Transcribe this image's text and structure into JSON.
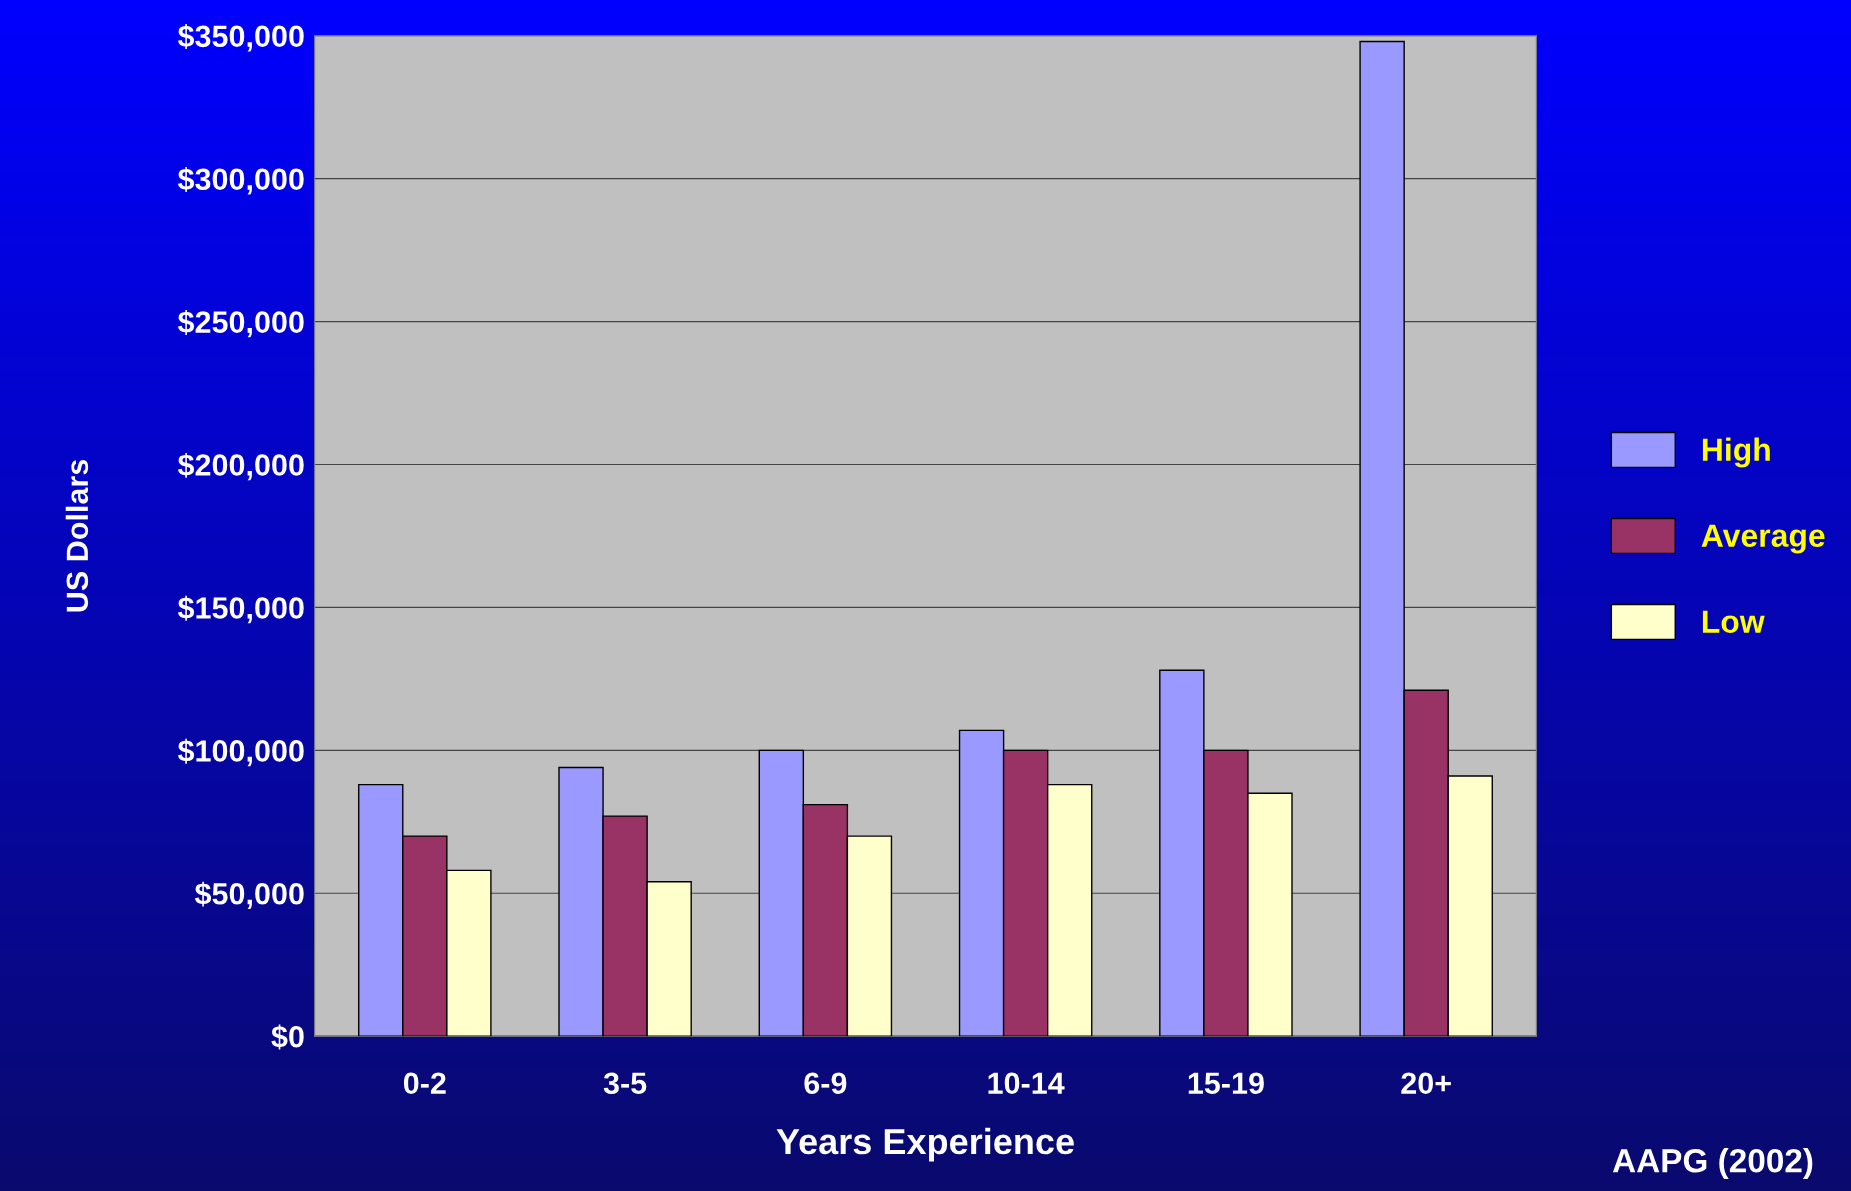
{
  "chart_data": {
    "type": "bar",
    "xlabel": "Years Experience",
    "ylabel": "US Dollars",
    "categories": [
      "0-2",
      "3-5",
      "6-9",
      "10-14",
      "15-19",
      "20+"
    ],
    "series": [
      {
        "name": "High",
        "color": "#9999ff",
        "values": [
          88000,
          94000,
          100000,
          107000,
          128000,
          348000
        ]
      },
      {
        "name": "Average",
        "color": "#993366",
        "values": [
          70000,
          77000,
          81000,
          100000,
          100000,
          121000
        ]
      },
      {
        "name": "Low",
        "color": "#ffffcc",
        "values": [
          58000,
          54000,
          70000,
          88000,
          85000,
          91000
        ]
      }
    ],
    "ylim": [
      0,
      350000
    ],
    "yticks": [
      {
        "value": 0,
        "label": "$0"
      },
      {
        "value": 50000,
        "label": "$50,000"
      },
      {
        "value": 100000,
        "label": "$100,000"
      },
      {
        "value": 150000,
        "label": "$150,000"
      },
      {
        "value": 200000,
        "label": "$200,000"
      },
      {
        "value": 250000,
        "label": "$250,000"
      },
      {
        "value": 300000,
        "label": "$300,000"
      },
      {
        "value": 350000,
        "label": "$350,000"
      }
    ],
    "grid": "y",
    "legend": "right",
    "annotations": [
      "AAPG (2002)"
    ]
  }
}
